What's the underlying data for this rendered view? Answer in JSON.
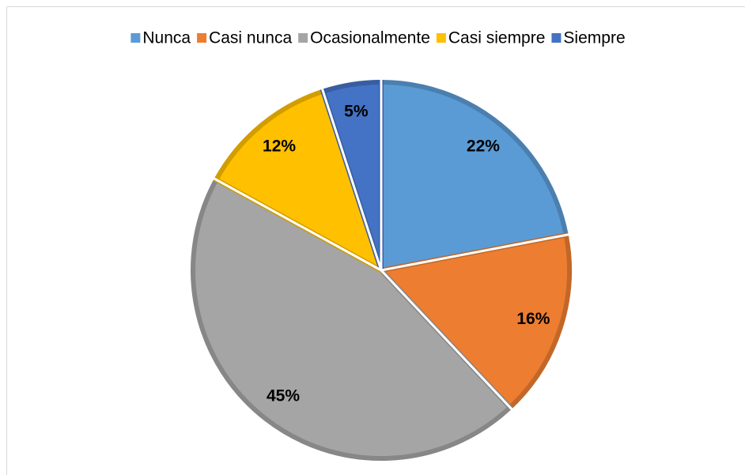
{
  "chart_data": {
    "type": "pie",
    "categories": [
      "Nunca",
      "Casi nunca",
      "Ocasionalmente",
      "Casi siempre",
      "Siempre"
    ],
    "values": [
      22,
      16,
      45,
      12,
      5
    ],
    "value_labels": [
      "22%",
      "16%",
      "45%",
      "12%",
      "5%"
    ],
    "colors": [
      "#5b9bd5",
      "#ed7d31",
      "#a5a5a5",
      "#ffc000",
      "#4472c4"
    ],
    "legend": "top"
  }
}
